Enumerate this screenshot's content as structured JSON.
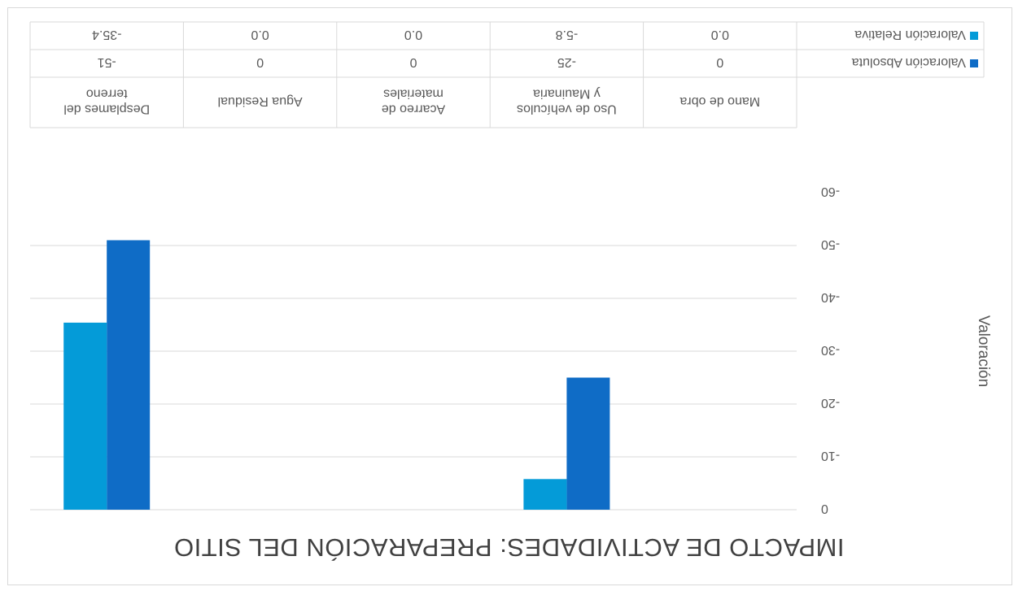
{
  "chart_data": {
    "type": "bar",
    "title": "IMPACTO DE ACTIVIDADES: PREPARACIÓN DEL SITIO",
    "ylabel": "Valoración",
    "xlabel": "",
    "categories": [
      "Mano de obra",
      "Uso de vehículos y Mauinaria",
      "Acarreo de materiales",
      "Agua Residual",
      "Desplames del terreno"
    ],
    "category_lines": [
      [
        "Mano de obra"
      ],
      [
        "Uso de vehículos",
        "y Mauinaria"
      ],
      [
        "Acarreo de",
        "materiales"
      ],
      [
        "Agua Residual"
      ],
      [
        "Desplames del",
        "terreno"
      ]
    ],
    "series": [
      {
        "name": "Valoración Absoluta",
        "values": [
          0,
          -25,
          0,
          0,
          -51
        ],
        "labels": [
          "0",
          "-25",
          "0",
          "0",
          "-51"
        ],
        "color": "#0f6cc6"
      },
      {
        "name": "Valoración Relativa",
        "values": [
          0.0,
          -5.8,
          0.0,
          0.0,
          -35.4
        ],
        "labels": [
          "0.0",
          "-5.8",
          "0.0",
          "0.0",
          "-35.4"
        ],
        "color": "#049bd8"
      }
    ],
    "ylim": [
      -60,
      0
    ],
    "yticks": [
      0,
      -10,
      -20,
      -30,
      -40,
      -50,
      -60
    ],
    "grid": true,
    "legend": "data-table",
    "orientation": "rotated 180 degrees"
  }
}
